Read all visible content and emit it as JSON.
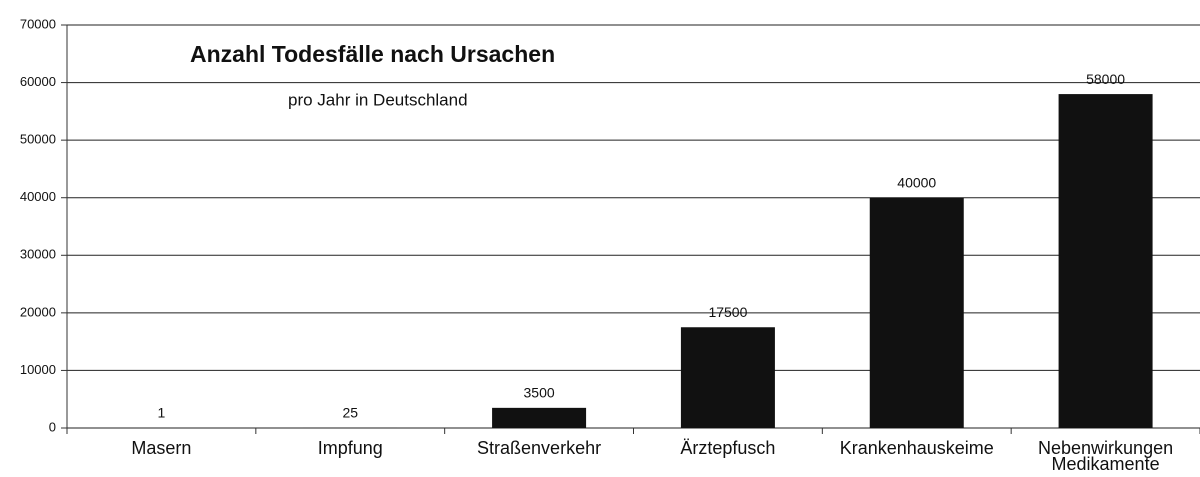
{
  "chart_data": {
    "type": "bar",
    "title": "Anzahl Todesfälle nach Ursachen",
    "subtitle": "pro Jahr in Deutschland",
    "categories": [
      "Masern",
      "Impfung",
      "Straßenverkehr",
      "Ärztepfusch",
      "Krankenhauskeime",
      "Nebenwirkungen Medikamente"
    ],
    "values": [
      1,
      25,
      3500,
      17500,
      40000,
      58000
    ],
    "color": "#111111",
    "ylim": [
      0,
      70000
    ],
    "yticks": [
      0,
      10000,
      20000,
      30000,
      40000,
      50000,
      60000,
      70000
    ],
    "grid": true
  }
}
